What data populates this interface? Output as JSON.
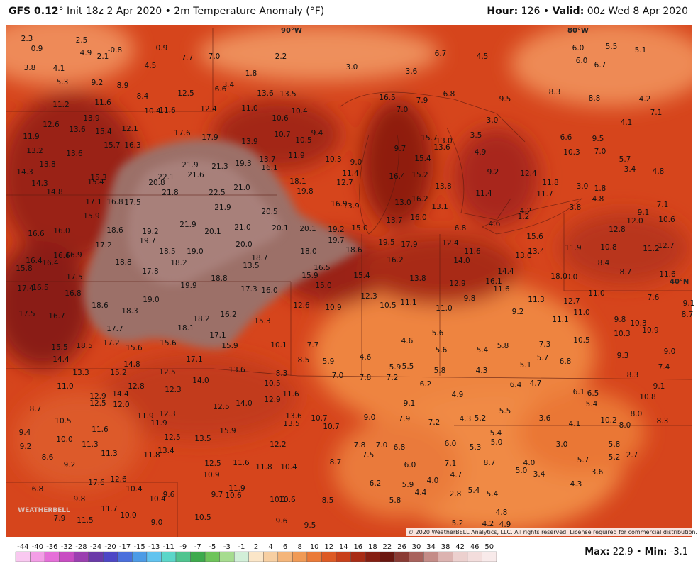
{
  "header": {
    "model": "GFS 0.12",
    "title_rest": "° Init 18z 2 Apr 2020 • 2m Temperature Anomaly (°F)",
    "hour_label": "Hour:",
    "hour_value": " 126 • ",
    "valid_label": "Valid:",
    "valid_value": " 00z Wed 8 Apr 2020"
  },
  "grid_labels": {
    "lon_90": "90°W",
    "lon_80": "80°W",
    "lat_40": "40°N"
  },
  "copyright": "© 2020 WeatherBELL Analytics, LLC. All rights reserved. License required for commercial distribution.",
  "logo": "WEATHERBELL",
  "colorbar": {
    "ticks": [
      -44,
      -40,
      -36,
      -32,
      -28,
      -24,
      -20,
      -17,
      -15,
      -13,
      -11,
      -9,
      -7,
      -5,
      -3,
      -1,
      2,
      4,
      6,
      8,
      10,
      12,
      14,
      16,
      18,
      22,
      26,
      30,
      34,
      38,
      42,
      46,
      50
    ],
    "colors": [
      "#f9c8f0",
      "#f39ee6",
      "#e56fd8",
      "#c84cc2",
      "#9b3fb0",
      "#6a3aa8",
      "#4d47c6",
      "#4a6fdc",
      "#4d9be6",
      "#62c3ef",
      "#5bd6c9",
      "#4fc48f",
      "#3daa4d",
      "#6ec45a",
      "#a6dc8f",
      "#d2efd8",
      "#fbe6c8",
      "#f7cfa2",
      "#f4b57a",
      "#f09a55",
      "#ea7a38",
      "#dd5a24",
      "#c8401a",
      "#a82c15",
      "#851f12",
      "#6a1710",
      "#8a3b34",
      "#a8625c",
      "#c48c87",
      "#dcb3b0",
      "#ecd0ce",
      "#f3dddc",
      "#f8eaea"
    ]
  },
  "footer": {
    "max_label": "Max:",
    "max": 22.9,
    "sep": " • ",
    "min_label": "Min:",
    "min": -3.1
  },
  "map": {
    "labels": [
      "2.3",
      "2.5",
      "0.9",
      "4.9",
      "2.1",
      "-0.8",
      "0.9",
      "7.7",
      "7.0",
      "2.2",
      "6.7",
      "4.5",
      "6.0",
      "5.5",
      "5.1",
      "6.0",
      "6.7",
      "3.8",
      "4.1",
      "4.5",
      "1.8",
      "3.0",
      "3.6",
      "5.3",
      "9.2",
      "8.9",
      "6.6",
      "3.4",
      "12.5",
      "13.6",
      "13.5",
      "16.5",
      "7.9",
      "6.8",
      "9.5",
      "8.3",
      "8.8",
      "4.2",
      "11.2",
      "11.6",
      "8.4",
      "12.4",
      "11.0",
      "10.4",
      "7.0",
      "7.1",
      "13.9",
      "10.4",
      "11.6",
      "10.6",
      "3.0",
      "4.1",
      "11.9",
      "12.6",
      "13.6",
      "15.4",
      "12.1",
      "17.6",
      "17.9",
      "10.7",
      "10.5",
      "9.4",
      "15.7",
      "13.0",
      "3.5",
      "6.6",
      "9.5",
      "13.2",
      "15.7",
      "16.3",
      "13.9",
      "13.6",
      "13.7",
      "11.9",
      "10.3",
      "9.7",
      "15.4",
      "13.6",
      "4.9",
      "10.3",
      "7.0",
      "13.8",
      "21.9",
      "21.3",
      "19.3",
      "16.1",
      "9.0",
      "5.7",
      "3.4",
      "4.8",
      "14.3",
      "15.3",
      "22.1",
      "21.6",
      "20.8",
      "11.4",
      "16.4",
      "15.2",
      "9.2",
      "12.4",
      "14.3",
      "15.4",
      "18.1",
      "12.7",
      "13.8",
      "11.8",
      "3.0",
      "1.8",
      "14.8",
      "21.8",
      "22.5",
      "21.0",
      "19.8",
      "11.4",
      "11.7",
      "4.8",
      "17.1",
      "16.8",
      "17.5",
      "21.9",
      "16.9",
      "13.9",
      "13.0",
      "16.2",
      "13.1",
      "3.8",
      "7.1",
      "9.1",
      "15.9",
      "20.5",
      "16.0",
      "4.2",
      "1.2",
      "12.0",
      "10.6",
      "16.6",
      "16.0",
      "18.6",
      "21.9",
      "19.2",
      "20.1",
      "21.0",
      "20.1",
      "20.1",
      "19.2",
      "15.0",
      "13.7",
      "6.8",
      "4.6",
      "15.6",
      "12.8",
      "19.7",
      "17.2",
      "20.0",
      "19.7",
      "19.5",
      "17.9",
      "12.4",
      "11.9",
      "10.8",
      "11.2",
      "12.7",
      "16.4",
      "16.4",
      "16.6",
      "16.9",
      "18.5",
      "19.0",
      "18.0",
      "18.6",
      "11.6",
      "13.0",
      "13.4",
      "15.8",
      "18.8",
      "18.2",
      "18.7",
      "13.5",
      "16.2",
      "14.0",
      "8.4",
      "17.8",
      "16.5",
      "15.9",
      "15.4",
      "13.8",
      "14.4",
      "18.0",
      "0.0",
      "8.7",
      "11.6",
      "17.4",
      "16.5",
      "17.5",
      "19.9",
      "18.8",
      "17.3",
      "16.0",
      "15.0",
      "12.9",
      "16.1",
      "11.6",
      "11.0",
      "7.6",
      "16.8",
      "19.0",
      "12.3",
      "9.8",
      "11.3",
      "12.7",
      "9.1",
      "17.5",
      "16.7",
      "18.6",
      "18.3",
      "18.2",
      "16.2",
      "12.6",
      "10.9",
      "10.5",
      "11.1",
      "11.0",
      "9.2",
      "11.1",
      "11.0",
      "9.8",
      "10.3",
      "8.7",
      "17.7",
      "15.3",
      "18.1",
      "17.1",
      "5.6",
      "4.6",
      "10.3",
      "10.9",
      "15.5",
      "18.5",
      "17.2",
      "15.6",
      "15.6",
      "15.9",
      "10.1",
      "7.7",
      "5.6",
      "5.4",
      "5.8",
      "7.3",
      "10.5",
      "9.0",
      "14.4",
      "17.1",
      "8.5",
      "5.9",
      "4.6",
      "5.1",
      "5.7",
      "6.8",
      "9.3",
      "13.3",
      "15.2",
      "14.8",
      "12.5",
      "13.6",
      "8.3",
      "7.0",
      "7.8",
      "7.2",
      "5.9",
      "5.5",
      "5.8",
      "4.3",
      "7.4",
      "8.3",
      "11.0",
      "12.8",
      "12.3",
      "14.0",
      "10.5",
      "6.2",
      "6.4",
      "4.7",
      "9.1",
      "12.9",
      "14.4",
      "12.5",
      "12.0",
      "11.6",
      "12.9",
      "14.0",
      "12.5",
      "4.9",
      "6.1",
      "6.5",
      "10.8",
      "5.4",
      "8.7",
      "9.1",
      "11.9",
      "12.3",
      "13.6",
      "10.7",
      "9.0",
      "7.9",
      "4.3",
      "5.2",
      "5.5",
      "3.6",
      "10.2",
      "8.0",
      "8.0",
      "8.3",
      "10.5",
      "11.9",
      "13.5",
      "10.7",
      "7.2",
      "4.1",
      "9.4",
      "11.6",
      "15.9",
      "12.5",
      "13.5",
      "5.4",
      "9.2",
      "10.0",
      "11.3",
      "12.2",
      "7.8",
      "7.0",
      "6.8",
      "6.0",
      "5.3",
      "5.0",
      "3.0",
      "5.8",
      "8.6",
      "11.3",
      "13.4",
      "11.8",
      "7.5",
      "2.7",
      "5.2",
      "9.2",
      "12.5",
      "11.6",
      "11.8",
      "10.4",
      "8.7",
      "6.0",
      "7.1",
      "8.7",
      "4.0",
      "5.7",
      "10.9",
      "4.7",
      "5.0",
      "3.4",
      "3.6",
      "17.6",
      "12.6",
      "6.2",
      "5.9",
      "4.0",
      "4.3",
      "6.8",
      "10.4",
      "11.9",
      "4.4",
      "2.8",
      "5.4",
      "5.4",
      "9.8",
      "10.4",
      "9.6",
      "9.7",
      "10.6",
      "10.1",
      "10.6",
      "8.5",
      "5.8",
      "11.7",
      "10.0",
      "10.5",
      "4.8",
      "7.9",
      "11.5",
      "9.0",
      "9.6",
      "9.5",
      "5.2",
      "4.2",
      "4.9"
    ]
  }
}
